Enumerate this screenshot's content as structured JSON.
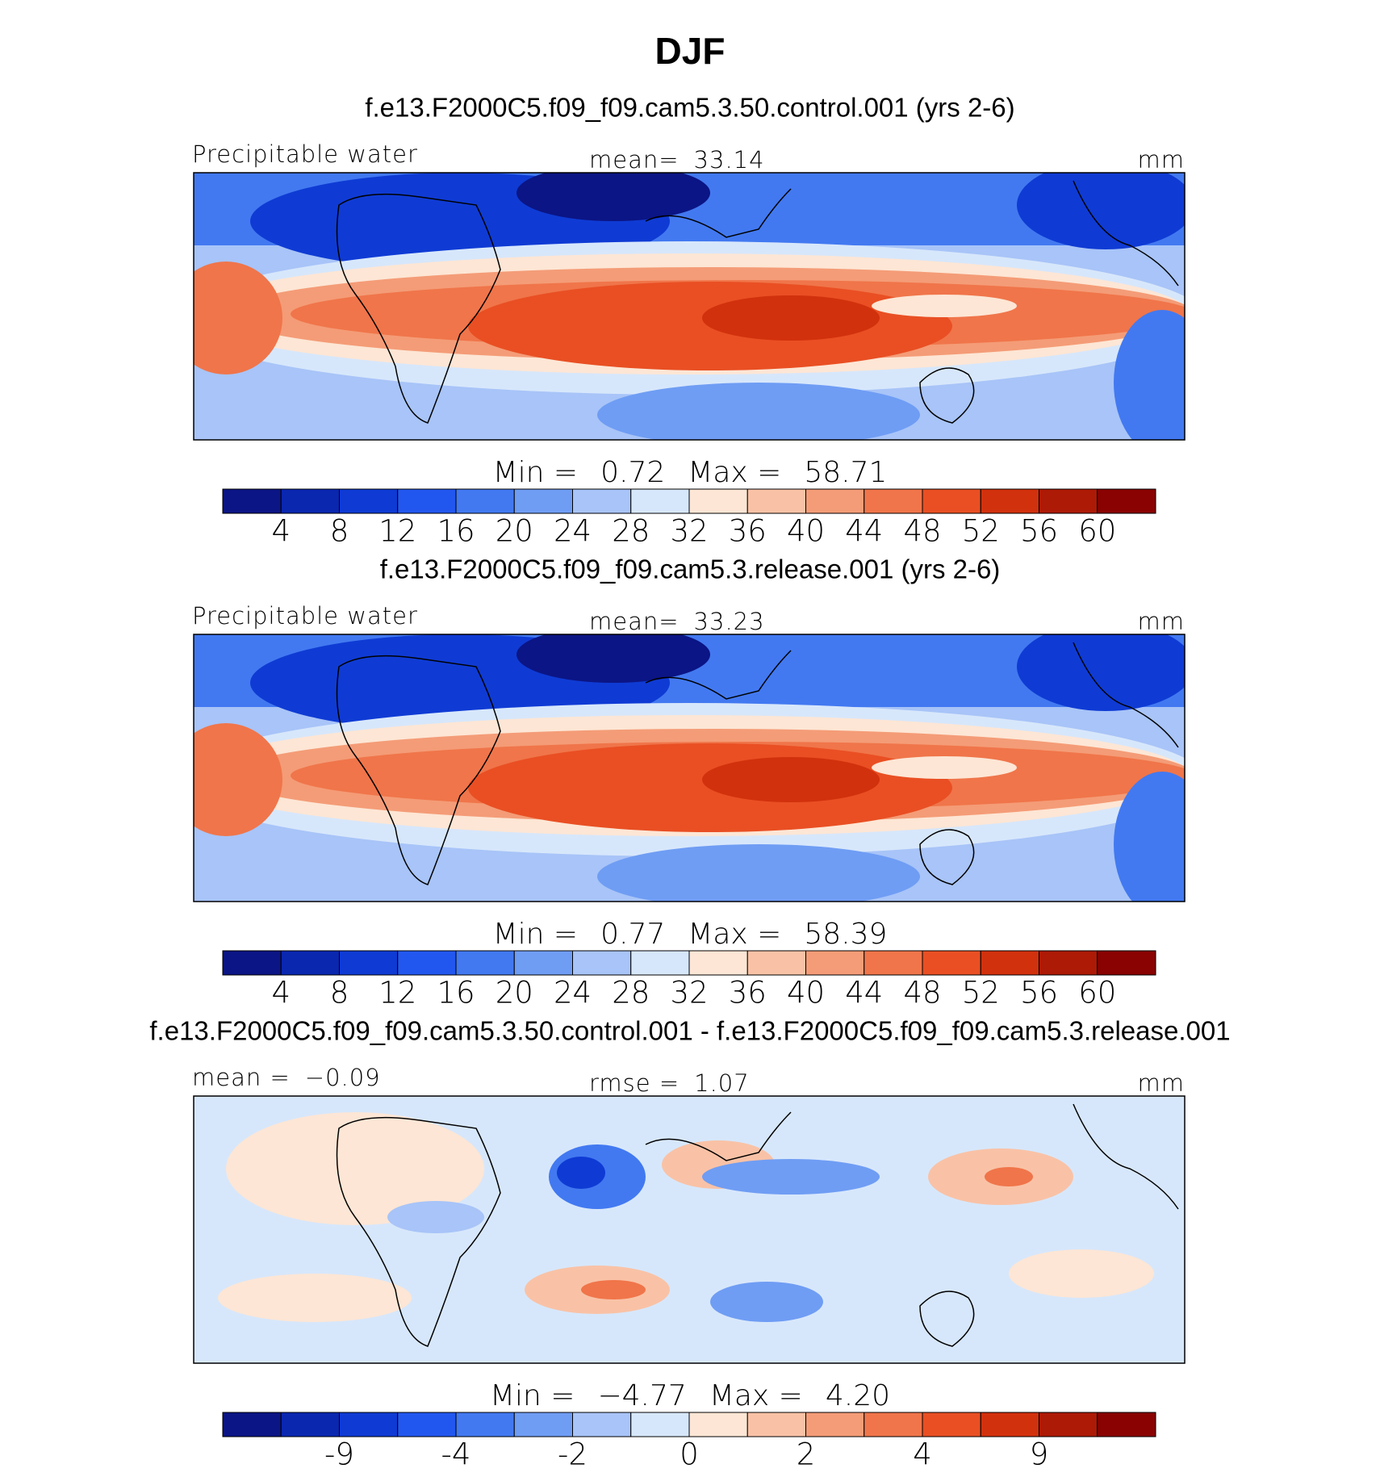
{
  "title": "DJF",
  "chart_data": [
    {
      "type": "contour-map",
      "title": "f.e13.F2000C5.f09_f09.cam5.3.50.control.001 (yrs 2-6)",
      "left_label": [
        "Precipitable water"
      ],
      "center_label": [
        "mean=",
        "33.14"
      ],
      "right_label": "mm",
      "stats": [
        "Min =",
        "0.72",
        "Max =",
        "58.71"
      ],
      "colorbar": {
        "colors": [
          "#0b1585",
          "#0a27b0",
          "#0f3bd4",
          "#2257ef",
          "#4279f1",
          "#6f9df4",
          "#a8c4f8",
          "#d7e7fb",
          "#fde6d5",
          "#f9c2a6",
          "#f49c77",
          "#f0754a",
          "#e94f23",
          "#d2310d",
          "#ad1a06",
          "#8a0202"
        ],
        "levels": [
          4,
          8,
          12,
          16,
          20,
          24,
          28,
          32,
          36,
          40,
          44,
          48,
          52,
          56,
          60
        ]
      }
    },
    {
      "type": "contour-map",
      "title": "f.e13.F2000C5.f09_f09.cam5.3.release.001 (yrs 2-6)",
      "left_label": [
        "Precipitable water"
      ],
      "center_label": [
        "mean=",
        "33.23"
      ],
      "right_label": "mm",
      "stats": [
        "Min =",
        "0.77",
        "Max =",
        "58.39"
      ],
      "colorbar": {
        "colors": [
          "#0b1585",
          "#0a27b0",
          "#0f3bd4",
          "#2257ef",
          "#4279f1",
          "#6f9df4",
          "#a8c4f8",
          "#d7e7fb",
          "#fde6d5",
          "#f9c2a6",
          "#f49c77",
          "#f0754a",
          "#e94f23",
          "#d2310d",
          "#ad1a06",
          "#8a0202"
        ],
        "levels": [
          4,
          8,
          12,
          16,
          20,
          24,
          28,
          32,
          36,
          40,
          44,
          48,
          52,
          56,
          60
        ]
      }
    },
    {
      "type": "contour-map",
      "title": "f.e13.F2000C5.f09_f09.cam5.3.50.control.001 - f.e13.F2000C5.f09_f09.cam5.3.release.001",
      "left_label": [
        "mean =",
        "−0.09"
      ],
      "center_label": [
        "rmse =",
        "1.07"
      ],
      "right_label": "mm",
      "stats": [
        "Min =",
        "−4.77",
        "Max =",
        "4.20"
      ],
      "colorbar": {
        "colors": [
          "#0b1585",
          "#0a27b0",
          "#0f3bd4",
          "#2257ef",
          "#4279f1",
          "#6f9df4",
          "#a8c4f8",
          "#d7e7fb",
          "#fde6d5",
          "#f9c2a6",
          "#f49c77",
          "#f0754a",
          "#e94f23",
          "#d2310d",
          "#ad1a06",
          "#8a0202"
        ],
        "levels": [
          null,
          -9,
          null,
          -4,
          null,
          -2,
          null,
          0,
          null,
          2,
          null,
          4,
          null,
          9,
          null
        ]
      }
    }
  ]
}
